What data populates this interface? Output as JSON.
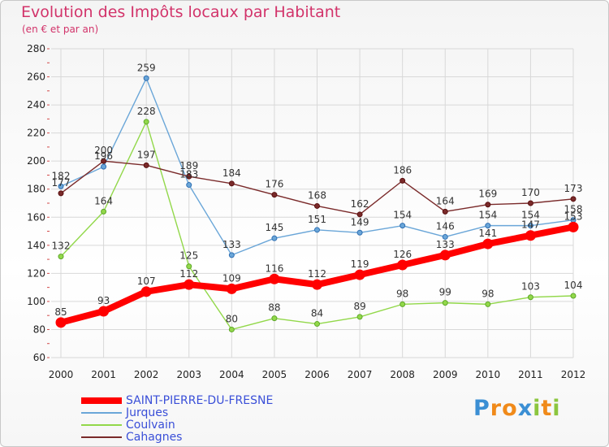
{
  "header": {
    "title": "Evolution des Impôts locaux par Habitant",
    "subtitle": "(en € et par an)"
  },
  "chart_data": {
    "type": "line",
    "title": "Evolution des Impôts locaux par Habitant",
    "subtitle": "(en € et par an)",
    "xlabel": "",
    "ylabel": "",
    "ylim": [
      60,
      280
    ],
    "yticks": [
      60,
      80,
      100,
      120,
      140,
      160,
      180,
      200,
      220,
      240,
      260,
      280
    ],
    "grid": true,
    "categories": [
      "2000",
      "2001",
      "2002",
      "2003",
      "2004",
      "2005",
      "2006",
      "2007",
      "2008",
      "2009",
      "2010",
      "2011",
      "2012"
    ],
    "series": [
      {
        "name": "SAINT-PIERRE-DU-FRESNE",
        "color": "#ff0000",
        "values": [
          85,
          93,
          107,
          112,
          109,
          116,
          112,
          119,
          126,
          133,
          141,
          147,
          153
        ]
      },
      {
        "name": "Jurques",
        "color": "#6aa6d8",
        "values": [
          182,
          196,
          259,
          183,
          133,
          145,
          151,
          149,
          154,
          146,
          154,
          154,
          158
        ]
      },
      {
        "name": "Coulvain",
        "color": "#92d84a",
        "values": [
          132,
          164,
          228,
          125,
          80,
          88,
          84,
          89,
          98,
          99,
          98,
          103,
          104
        ]
      },
      {
        "name": "Cahagnes",
        "color": "#7a2a2a",
        "values": [
          177,
          200,
          197,
          189,
          184,
          176,
          168,
          162,
          186,
          164,
          169,
          170,
          173
        ]
      }
    ]
  },
  "logo": {
    "letters": [
      "P",
      "r",
      "o",
      "x",
      "i",
      "t",
      "i"
    ]
  }
}
